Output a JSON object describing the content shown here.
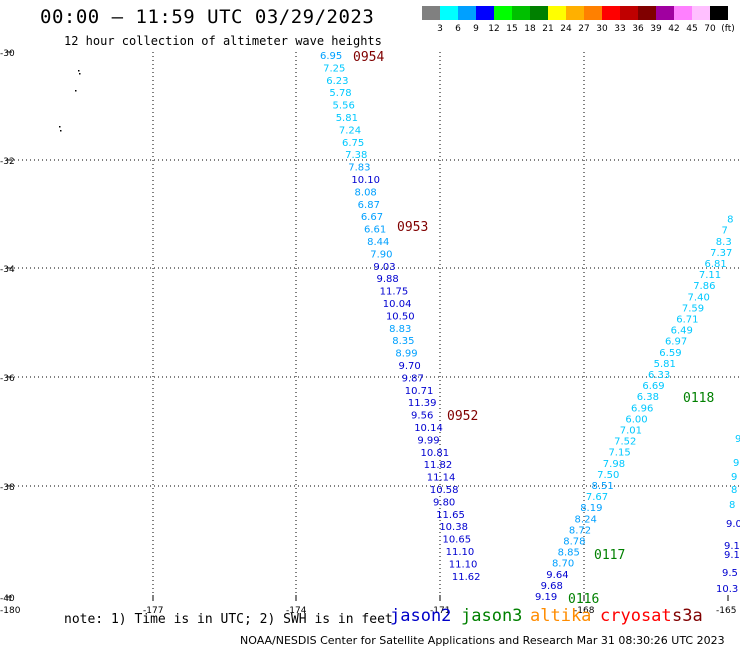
{
  "header": {
    "title": "00:00 – 11:59 UTC 03/29/2023",
    "subtitle": "12 hour collection of altimeter wave heights"
  },
  "legend": {
    "colors": [
      "#808080",
      "#00ffff",
      "#00a0ff",
      "#0000ff",
      "#00ff00",
      "#00c000",
      "#008000",
      "#ffff00",
      "#ffb000",
      "#ff8000",
      "#ff0000",
      "#c00000",
      "#800000",
      "#a000a0",
      "#ff80ff",
      "#ffc0ff",
      "#000000"
    ],
    "labels": [
      "3",
      "6",
      "9",
      "12",
      "15",
      "18",
      "21",
      "24",
      "27",
      "30",
      "33",
      "36",
      "39",
      "42",
      "45",
      "70",
      "(ft)"
    ]
  },
  "axes": {
    "lat_labels": [
      "-30",
      "-32",
      "-34",
      "-36",
      "-38",
      "-40"
    ],
    "lon_labels": [
      "-180",
      "-177",
      "-174",
      "-171",
      "-168",
      "-165"
    ]
  },
  "tracks": {
    "west": [
      {
        "v": "6.95",
        "c": "#00a0ff"
      },
      {
        "v": "7.25",
        "c": "#00c8ff"
      },
      {
        "v": "6.23",
        "c": "#00c8ff"
      },
      {
        "v": "5.78",
        "c": "#00c8ff"
      },
      {
        "v": "5.56",
        "c": "#00c8ff"
      },
      {
        "v": "5.81",
        "c": "#00c8ff"
      },
      {
        "v": "7.24",
        "c": "#00c8ff"
      },
      {
        "v": "6.75",
        "c": "#00c8ff"
      },
      {
        "v": "7.38",
        "c": "#00c8ff"
      },
      {
        "v": "7.83",
        "c": "#00a0ff"
      },
      {
        "v": "10.10",
        "c": "#0000d0"
      },
      {
        "v": "8.08",
        "c": "#00a0ff"
      },
      {
        "v": "6.87",
        "c": "#00a0ff"
      },
      {
        "v": "6.67",
        "c": "#00a0ff"
      },
      {
        "v": "6.61",
        "c": "#00a0ff"
      },
      {
        "v": "8.44",
        "c": "#00a0ff"
      },
      {
        "v": "7.90",
        "c": "#00a0ff"
      },
      {
        "v": "9.03",
        "c": "#0000d0"
      },
      {
        "v": "9.88",
        "c": "#0000d0"
      },
      {
        "v": "11.75",
        "c": "#0000d0"
      },
      {
        "v": "10.04",
        "c": "#0000d0"
      },
      {
        "v": "10.50",
        "c": "#0000d0"
      },
      {
        "v": "8.83",
        "c": "#00a0ff"
      },
      {
        "v": "8.35",
        "c": "#00a0ff"
      },
      {
        "v": "8.99",
        "c": "#00a0ff"
      },
      {
        "v": "9.70",
        "c": "#0000d0"
      },
      {
        "v": "9.87",
        "c": "#0000d0"
      },
      {
        "v": "10.71",
        "c": "#0000d0"
      },
      {
        "v": "11.39",
        "c": "#0000d0"
      },
      {
        "v": "9.56",
        "c": "#0000d0"
      },
      {
        "v": "10.14",
        "c": "#0000d0"
      },
      {
        "v": "9.99",
        "c": "#0000d0"
      },
      {
        "v": "10.81",
        "c": "#0000d0"
      },
      {
        "v": "11.82",
        "c": "#0000d0"
      },
      {
        "v": "11.14",
        "c": "#0000d0"
      },
      {
        "v": "10.58",
        "c": "#0000d0"
      },
      {
        "v": "9.80",
        "c": "#0000d0"
      },
      {
        "v": "11.65",
        "c": "#0000d0"
      },
      {
        "v": "10.38",
        "c": "#0000d0"
      },
      {
        "v": "10.65",
        "c": "#0000d0"
      },
      {
        "v": "11.10",
        "c": "#0000d0"
      },
      {
        "v": "11.10",
        "c": "#0000d0"
      },
      {
        "v": "11.62",
        "c": "#0000d0"
      }
    ],
    "east": [
      {
        "v": "9.19",
        "c": "#0000d0"
      },
      {
        "v": "9.68",
        "c": "#0000d0"
      },
      {
        "v": "9.64",
        "c": "#0000d0"
      },
      {
        "v": "8.70",
        "c": "#00a0ff"
      },
      {
        "v": "8.85",
        "c": "#00a0ff"
      },
      {
        "v": "8.78",
        "c": "#00a0ff"
      },
      {
        "v": "8.72",
        "c": "#00a0ff"
      },
      {
        "v": "8.24",
        "c": "#00a0ff"
      },
      {
        "v": "8.19",
        "c": "#00a0ff"
      },
      {
        "v": "7.67",
        "c": "#00c8ff"
      },
      {
        "v": "8.51",
        "c": "#00a0ff"
      },
      {
        "v": "7.50",
        "c": "#00c8ff"
      },
      {
        "v": "7.98",
        "c": "#00c8ff"
      },
      {
        "v": "7.15",
        "c": "#00c8ff"
      },
      {
        "v": "7.52",
        "c": "#00c8ff"
      },
      {
        "v": "7.01",
        "c": "#00c8ff"
      },
      {
        "v": "6.00",
        "c": "#00c8ff"
      },
      {
        "v": "6.96",
        "c": "#00c8ff"
      },
      {
        "v": "6.38",
        "c": "#00c8ff"
      },
      {
        "v": "6.69",
        "c": "#00c8ff"
      },
      {
        "v": "6.33",
        "c": "#00c8ff"
      },
      {
        "v": "5.81",
        "c": "#00c8ff"
      },
      {
        "v": "6.59",
        "c": "#00c8ff"
      },
      {
        "v": "6.97",
        "c": "#00c8ff"
      },
      {
        "v": "6.49",
        "c": "#00c8ff"
      },
      {
        "v": "6.71",
        "c": "#00c8ff"
      },
      {
        "v": "7.59",
        "c": "#00c8ff"
      },
      {
        "v": "7.40",
        "c": "#00c8ff"
      },
      {
        "v": "7.86",
        "c": "#00c8ff"
      },
      {
        "v": "7.11",
        "c": "#00c8ff"
      },
      {
        "v": "6.81",
        "c": "#00c8ff"
      },
      {
        "v": "7.37",
        "c": "#00c8ff"
      },
      {
        "v": "8.3",
        "c": "#00c8ff"
      },
      {
        "v": "7",
        "c": "#00c8ff"
      },
      {
        "v": "8",
        "c": "#00c8ff"
      }
    ],
    "far_east": [
      {
        "v": "9",
        "c": "#00c8ff"
      },
      {
        "v": "9",
        "c": "#00c8ff"
      },
      {
        "v": "9",
        "c": "#00c8ff"
      },
      {
        "v": "8",
        "c": "#00c8ff"
      },
      {
        "v": "8",
        "c": "#00c8ff"
      },
      {
        "v": "9.0",
        "c": "#0000d0"
      },
      {
        "v": "9.1",
        "c": "#0000d0"
      },
      {
        "v": "9.1",
        "c": "#0000d0"
      },
      {
        "v": "9.5",
        "c": "#0000d0"
      },
      {
        "v": "10.3",
        "c": "#0000d0"
      }
    ]
  },
  "time_labels": [
    {
      "text": "0954",
      "c": "#800000"
    },
    {
      "text": "0953",
      "c": "#800000"
    },
    {
      "text": "0952",
      "c": "#800000"
    },
    {
      "text": "0118",
      "c": "#008000"
    },
    {
      "text": "0117",
      "c": "#008000"
    },
    {
      "text": "0116",
      "c": "#008000"
    }
  ],
  "footer": {
    "note": "note: 1) Time is in UTC; 2) SWH is in feet",
    "satellites": [
      {
        "name": "jason2",
        "c": "#0000c8"
      },
      {
        "name": "jason3",
        "c": "#008000"
      },
      {
        "name": "altika",
        "c": "#ff8c00"
      },
      {
        "name": "cryosat",
        "c": "#ff0000"
      },
      {
        "name": "s3a",
        "c": "#800000"
      }
    ],
    "credit": "NOAA/NESDIS Center for Satellite Applications and Research   Mar 31 08:30:26 UTC 2023"
  }
}
